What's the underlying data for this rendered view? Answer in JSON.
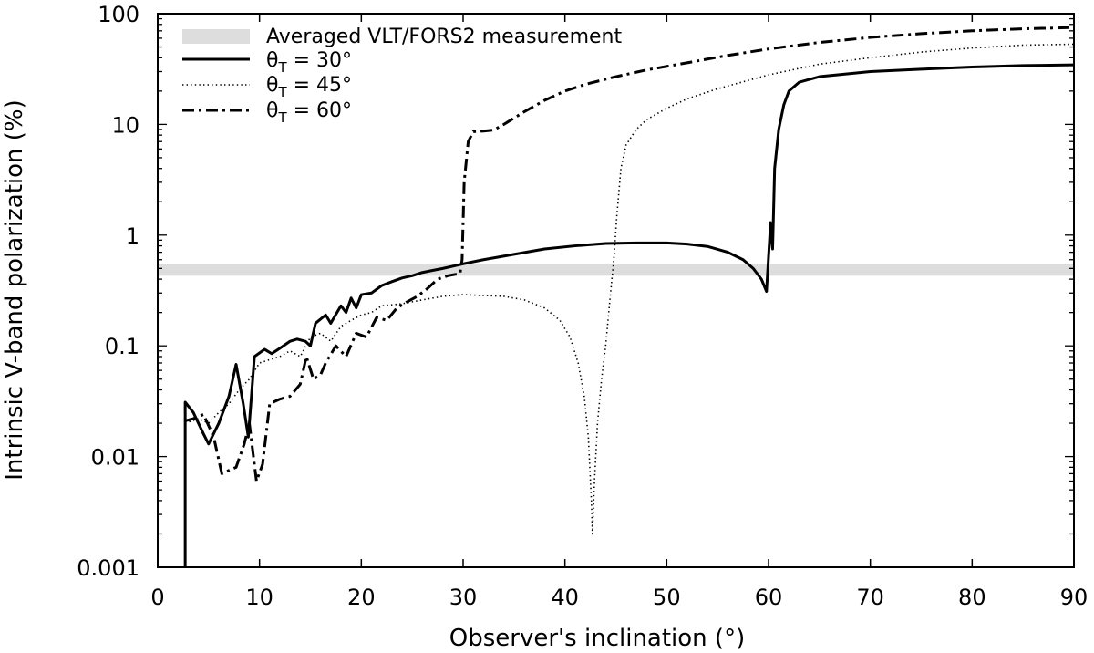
{
  "chart_data": {
    "type": "line",
    "xlabel": "Observer's inclination (°)",
    "ylabel": "Intrinsic V-band polarization (%)",
    "xlim": [
      0,
      90
    ],
    "ylim": [
      0.001,
      100
    ],
    "yscale": "log",
    "xticks": [
      0,
      10,
      20,
      30,
      40,
      50,
      60,
      70,
      80,
      90
    ],
    "xtick_labels": [
      "0",
      "10",
      "20",
      "30",
      "40",
      "50",
      "60",
      "70",
      "80",
      "90"
    ],
    "yticks": [
      0.001,
      0.01,
      0.1,
      1,
      10,
      100
    ],
    "ytick_labels": [
      "0.001",
      "0.01",
      "0.1",
      "1",
      "10",
      "100"
    ],
    "band": {
      "name": "Averaged VLT/FORS2 measurement",
      "ymin": 0.43,
      "ymax": 0.55,
      "color": "#dddddd"
    },
    "legend_position": "top-left",
    "series": [
      {
        "name": "θT = 30°",
        "label_main": "θ",
        "label_sub": "T",
        "label_rest": " = 30°",
        "style": "solid",
        "points": [
          [
            2.7,
            0.001
          ],
          [
            2.7,
            0.031
          ],
          [
            3.5,
            0.025
          ],
          [
            4.5,
            0.016
          ],
          [
            5,
            0.013
          ],
          [
            6,
            0.02
          ],
          [
            7,
            0.035
          ],
          [
            7.7,
            0.068
          ],
          [
            8.4,
            0.03
          ],
          [
            8.9,
            0.015
          ],
          [
            9.5,
            0.08
          ],
          [
            10.5,
            0.093
          ],
          [
            11.2,
            0.085
          ],
          [
            12,
            0.095
          ],
          [
            13,
            0.11
          ],
          [
            13.7,
            0.115
          ],
          [
            14.5,
            0.11
          ],
          [
            15,
            0.1
          ],
          [
            15.5,
            0.16
          ],
          [
            16.5,
            0.19
          ],
          [
            17,
            0.16
          ],
          [
            18,
            0.23
          ],
          [
            18.5,
            0.2
          ],
          [
            19,
            0.27
          ],
          [
            19.5,
            0.22
          ],
          [
            20,
            0.29
          ],
          [
            21,
            0.3
          ],
          [
            22,
            0.35
          ],
          [
            23,
            0.38
          ],
          [
            24,
            0.41
          ],
          [
            25,
            0.43
          ],
          [
            26,
            0.46
          ],
          [
            27,
            0.48
          ],
          [
            28,
            0.5
          ],
          [
            30,
            0.55
          ],
          [
            32,
            0.6
          ],
          [
            35,
            0.67
          ],
          [
            38,
            0.75
          ],
          [
            41,
            0.8
          ],
          [
            44,
            0.84
          ],
          [
            47,
            0.85
          ],
          [
            50,
            0.85
          ],
          [
            52,
            0.83
          ],
          [
            54,
            0.79
          ],
          [
            56,
            0.7
          ],
          [
            57.5,
            0.6
          ],
          [
            58.5,
            0.5
          ],
          [
            59.3,
            0.4
          ],
          [
            59.8,
            0.31
          ],
          [
            60.2,
            1.3
          ],
          [
            60.4,
            0.75
          ],
          [
            60.6,
            4
          ],
          [
            61,
            9
          ],
          [
            61.5,
            15
          ],
          [
            62,
            20
          ],
          [
            63,
            24
          ],
          [
            65,
            27
          ],
          [
            70,
            30
          ],
          [
            75,
            31.5
          ],
          [
            80,
            33
          ],
          [
            85,
            34
          ],
          [
            90,
            34.5
          ]
        ]
      },
      {
        "name": "θT = 45°",
        "label_main": "θ",
        "label_sub": "T",
        "label_rest": " = 45°",
        "style": "dotted",
        "points": [
          [
            2.7,
            0.02
          ],
          [
            4,
            0.022
          ],
          [
            5,
            0.02
          ],
          [
            6,
            0.025
          ],
          [
            7,
            0.03
          ],
          [
            8,
            0.04
          ],
          [
            9,
            0.05
          ],
          [
            10,
            0.07
          ],
          [
            11,
            0.075
          ],
          [
            12,
            0.08
          ],
          [
            13,
            0.09
          ],
          [
            14,
            0.08
          ],
          [
            15,
            0.12
          ],
          [
            16,
            0.13
          ],
          [
            17,
            0.11
          ],
          [
            18,
            0.15
          ],
          [
            19,
            0.17
          ],
          [
            20,
            0.19
          ],
          [
            21,
            0.2
          ],
          [
            22,
            0.23
          ],
          [
            24,
            0.24
          ],
          [
            26,
            0.26
          ],
          [
            28,
            0.28
          ],
          [
            30,
            0.29
          ],
          [
            32,
            0.285
          ],
          [
            34,
            0.28
          ],
          [
            36,
            0.26
          ],
          [
            38,
            0.22
          ],
          [
            39.5,
            0.17
          ],
          [
            40.5,
            0.12
          ],
          [
            41.3,
            0.07
          ],
          [
            41.9,
            0.035
          ],
          [
            42.3,
            0.015
          ],
          [
            42.6,
            0.004
          ],
          [
            42.7,
            0.002
          ],
          [
            42.9,
            0.006
          ],
          [
            43.2,
            0.02
          ],
          [
            43.6,
            0.05
          ],
          [
            44,
            0.1
          ],
          [
            44.4,
            0.25
          ],
          [
            44.8,
            0.6
          ],
          [
            45.1,
            1.5
          ],
          [
            45.5,
            4
          ],
          [
            46,
            6.5
          ],
          [
            47,
            9
          ],
          [
            48,
            11
          ],
          [
            50,
            14
          ],
          [
            52,
            17
          ],
          [
            55,
            21
          ],
          [
            60,
            28
          ],
          [
            65,
            35
          ],
          [
            70,
            40
          ],
          [
            75,
            45
          ],
          [
            80,
            49
          ],
          [
            85,
            52
          ],
          [
            90,
            53
          ]
        ]
      },
      {
        "name": "θT = 60°",
        "label_main": "θ",
        "label_sub": "T",
        "label_rest": " = 60°",
        "style": "dashdot",
        "points": [
          [
            2.7,
            0.021
          ],
          [
            3.5,
            0.022
          ],
          [
            4.5,
            0.024
          ],
          [
            5.5,
            0.015
          ],
          [
            6.3,
            0.007
          ],
          [
            7,
            0.0075
          ],
          [
            7.7,
            0.008
          ],
          [
            8.5,
            0.013
          ],
          [
            9,
            0.02
          ],
          [
            9.7,
            0.006
          ],
          [
            10.3,
            0.0085
          ],
          [
            11,
            0.03
          ],
          [
            12,
            0.033
          ],
          [
            13,
            0.035
          ],
          [
            14,
            0.045
          ],
          [
            14.6,
            0.08
          ],
          [
            15.3,
            0.05
          ],
          [
            16,
            0.055
          ],
          [
            16.5,
            0.07
          ],
          [
            17.5,
            0.1
          ],
          [
            18.5,
            0.08
          ],
          [
            19.5,
            0.13
          ],
          [
            20.5,
            0.12
          ],
          [
            21.5,
            0.18
          ],
          [
            22.5,
            0.17
          ],
          [
            23.5,
            0.22
          ],
          [
            24.5,
            0.25
          ],
          [
            25.5,
            0.28
          ],
          [
            26.5,
            0.33
          ],
          [
            27.5,
            0.4
          ],
          [
            28.5,
            0.43
          ],
          [
            29.7,
            0.45
          ],
          [
            29.9,
            0.6
          ],
          [
            30.1,
            3
          ],
          [
            30.5,
            7
          ],
          [
            31,
            8.6
          ],
          [
            32,
            8.7
          ],
          [
            33,
            8.9
          ],
          [
            34,
            10
          ],
          [
            36,
            13
          ],
          [
            38,
            16.5
          ],
          [
            40,
            20
          ],
          [
            42,
            23
          ],
          [
            45,
            27
          ],
          [
            48,
            31
          ],
          [
            52,
            36
          ],
          [
            56,
            42
          ],
          [
            60,
            48
          ],
          [
            65,
            55
          ],
          [
            70,
            61
          ],
          [
            75,
            66
          ],
          [
            80,
            70
          ],
          [
            85,
            73
          ],
          [
            90,
            75
          ]
        ]
      }
    ]
  }
}
